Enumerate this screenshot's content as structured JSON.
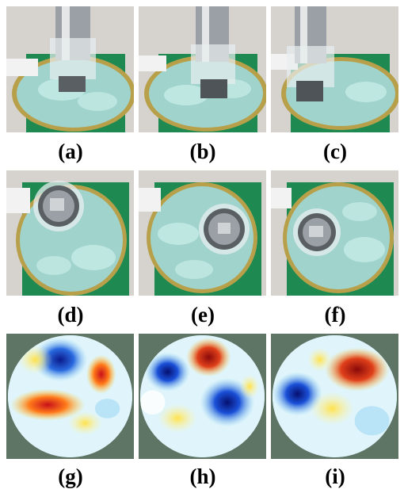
{
  "figure": {
    "panel_labels": [
      "(a)",
      "(b)",
      "(c)",
      "(d)",
      "(e)",
      "(f)",
      "(g)",
      "(h)",
      "(i)"
    ],
    "photo_panels": [
      {
        "label": "(a)",
        "view": "side",
        "object_position": "center"
      },
      {
        "label": "(b)",
        "view": "side",
        "object_position": "center"
      },
      {
        "label": "(c)",
        "view": "side",
        "object_position": "left"
      },
      {
        "label": "(d)",
        "view": "top",
        "object_position": "upper-left"
      },
      {
        "label": "(e)",
        "view": "top",
        "object_position": "right"
      },
      {
        "label": "(f)",
        "view": "top",
        "object_position": "center-left"
      }
    ],
    "reconstruction_panels": [
      {
        "label": "(g)",
        "colormap": "jet"
      },
      {
        "label": "(h)",
        "colormap": "jet"
      },
      {
        "label": "(i)",
        "colormap": "jet"
      }
    ],
    "colors": {
      "background": "#ffffff",
      "map_background": "#5e7566",
      "liquid": "#9fd3cc",
      "green_board": "#1e8a52",
      "tray_ring": "#b8a04a"
    }
  }
}
